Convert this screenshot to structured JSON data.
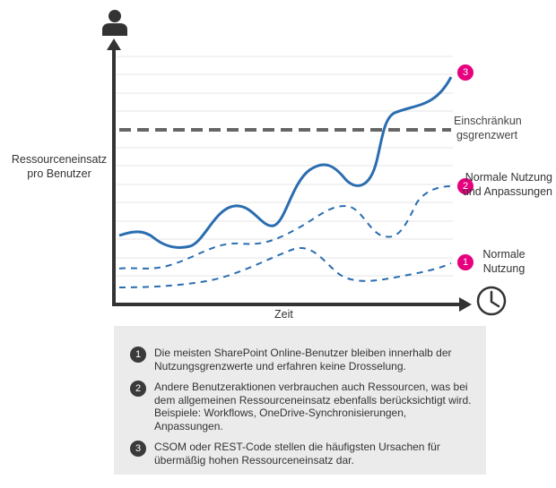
{
  "diagram": {
    "y_axis_label": "Ressourceneinsatz pro Benutzer",
    "x_axis_label": "Zeit",
    "limit_label": "Einschränkun gsgrenzwert",
    "series": [
      {
        "badge": "1",
        "label": "Normale Nutzung",
        "style": "dashed"
      },
      {
        "badge": "2",
        "label": "Normale Nutzung und Anpassungen",
        "style": "dashed"
      },
      {
        "badge": "3",
        "label": "",
        "style": "solid"
      }
    ],
    "colors": {
      "axis": "#333333",
      "line": "#2a6db0",
      "limit": "#666666",
      "badge": "#e6007e",
      "note_badge": "#3a3a3a",
      "panel": "#ebebeb"
    },
    "icons": {
      "y_axis": "user-icon",
      "x_axis": "clock-icon"
    }
  },
  "notes": [
    {
      "number": "1",
      "text": "Die meisten SharePoint Online-Benutzer bleiben innerhalb der Nutzungsgrenzwerte und erfahren keine Drosselung."
    },
    {
      "number": "2",
      "text": "Andere Benutzeraktionen verbrauchen auch Ressourcen, was bei dem allgemeinen Ressourceneinsatz ebenfalls berücksichtigt wird. Beispiele: Workflows, OneDrive-Synchronisierungen, Anpassungen."
    },
    {
      "number": "3",
      "text": "CSOM oder REST-Code stellen die häufigsten Ursachen für übermäßig hohen Ressourceneinsatz dar."
    }
  ]
}
